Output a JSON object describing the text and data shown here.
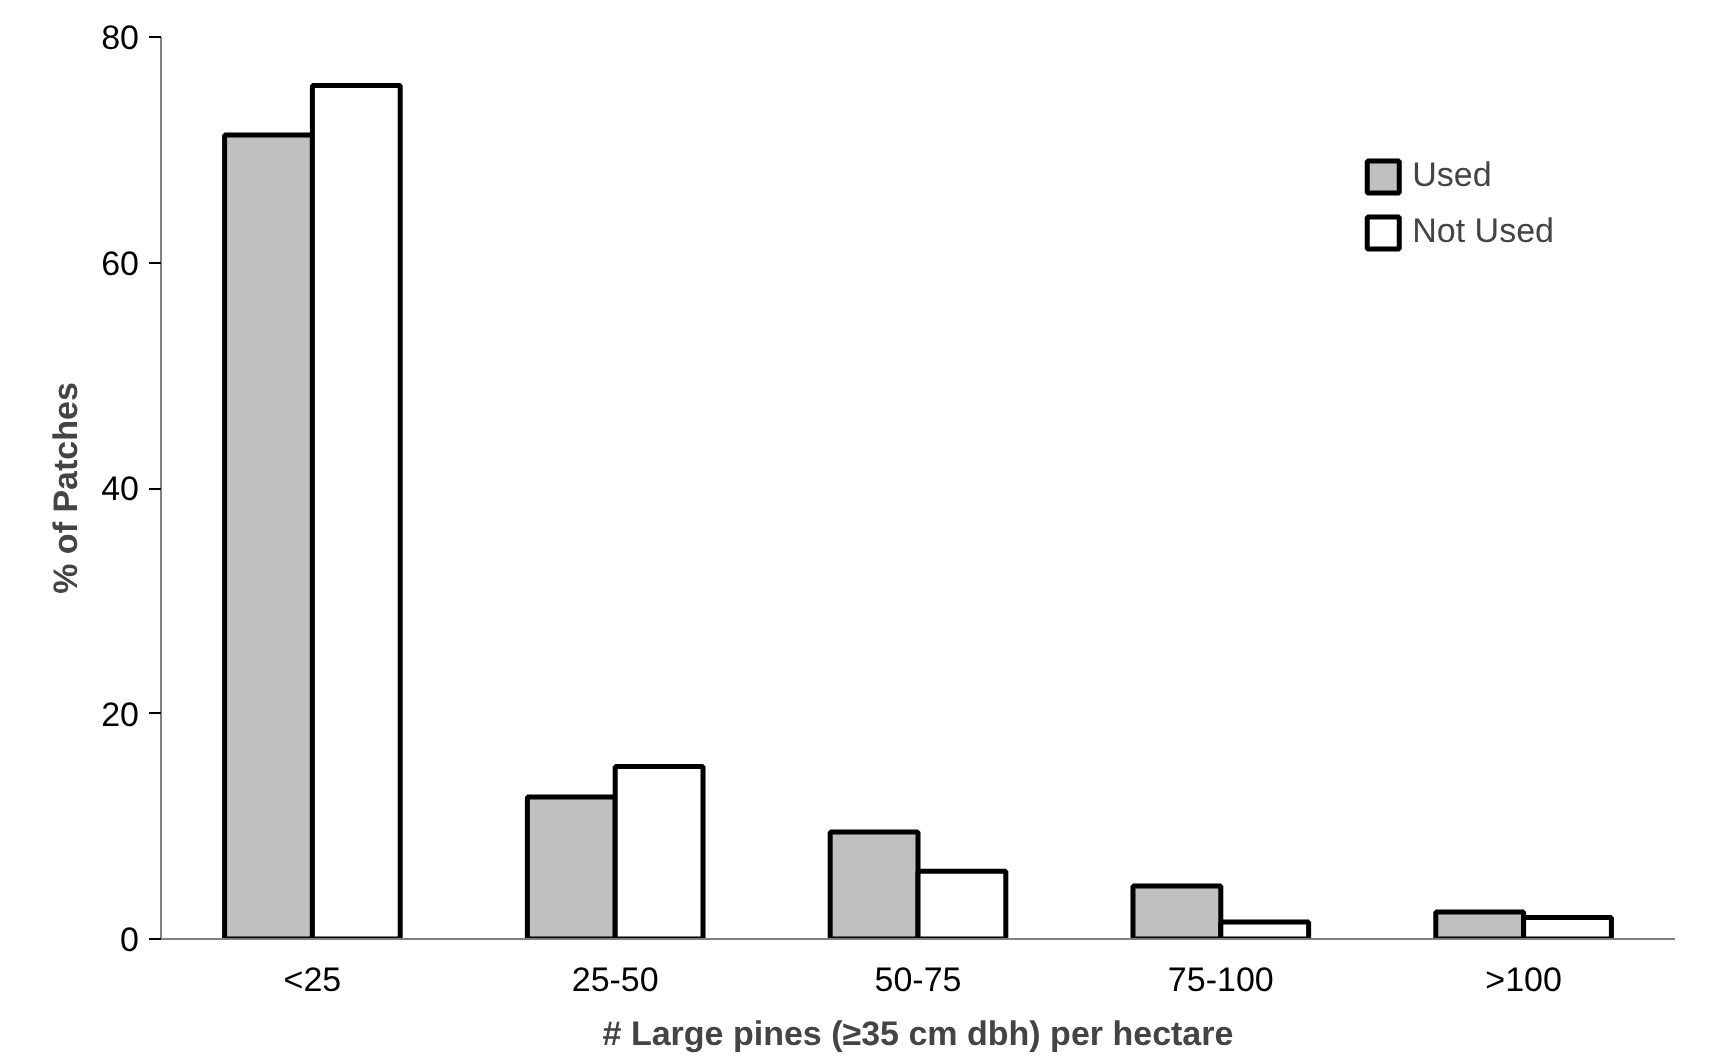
{
  "chart_data": {
    "type": "bar",
    "xlabel": "# Large pines (≥35 cm dbh) per hectare",
    "ylabel": "% of Patches",
    "categories": [
      "<25",
      "25-50",
      "50-75",
      "75-100",
      ">100"
    ],
    "series": [
      {
        "name": "Used",
        "color": "#c0c0c0",
        "values": [
          71.3,
          12.6,
          9.5,
          4.7,
          2.4
        ]
      },
      {
        "name": "Not Used",
        "color": "#ffffff",
        "values": [
          75.7,
          15.3,
          6.0,
          1.5,
          1.9
        ]
      }
    ],
    "ylim": [
      0,
      80
    ],
    "yticks": [
      0,
      20,
      40,
      60,
      80
    ],
    "grid": false,
    "legend": "top right"
  }
}
